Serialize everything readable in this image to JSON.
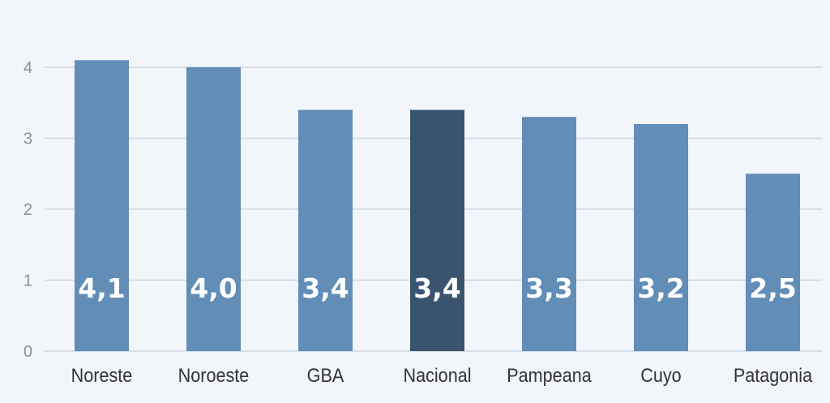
{
  "chart_data": {
    "type": "bar",
    "categories": [
      "Noreste",
      "Noroeste",
      "GBA",
      "Nacional",
      "Pampeana",
      "Cuyo",
      "Patagonia"
    ],
    "values": [
      4.1,
      4.0,
      3.4,
      3.4,
      3.3,
      3.2,
      2.5
    ],
    "data_labels": [
      "4,1",
      "4,0",
      "3,4",
      "3,4",
      "3,3",
      "3,2",
      "2,5"
    ],
    "y_ticks": [
      0,
      1,
      2,
      3,
      4
    ],
    "y_tick_labels": [
      "0",
      "1",
      "2",
      "3",
      "4"
    ],
    "ylim": [
      0,
      4.5
    ],
    "grid": true,
    "legend": "none",
    "highlight_category": "Nacional",
    "colors": {
      "bar": "#628db7",
      "highlight": "#3a5470",
      "grid": "#cfd6df",
      "tick_label": "#8a9098",
      "category_label": "#333333",
      "data_label": "#ffffff",
      "background": "#f2f5fa"
    }
  }
}
